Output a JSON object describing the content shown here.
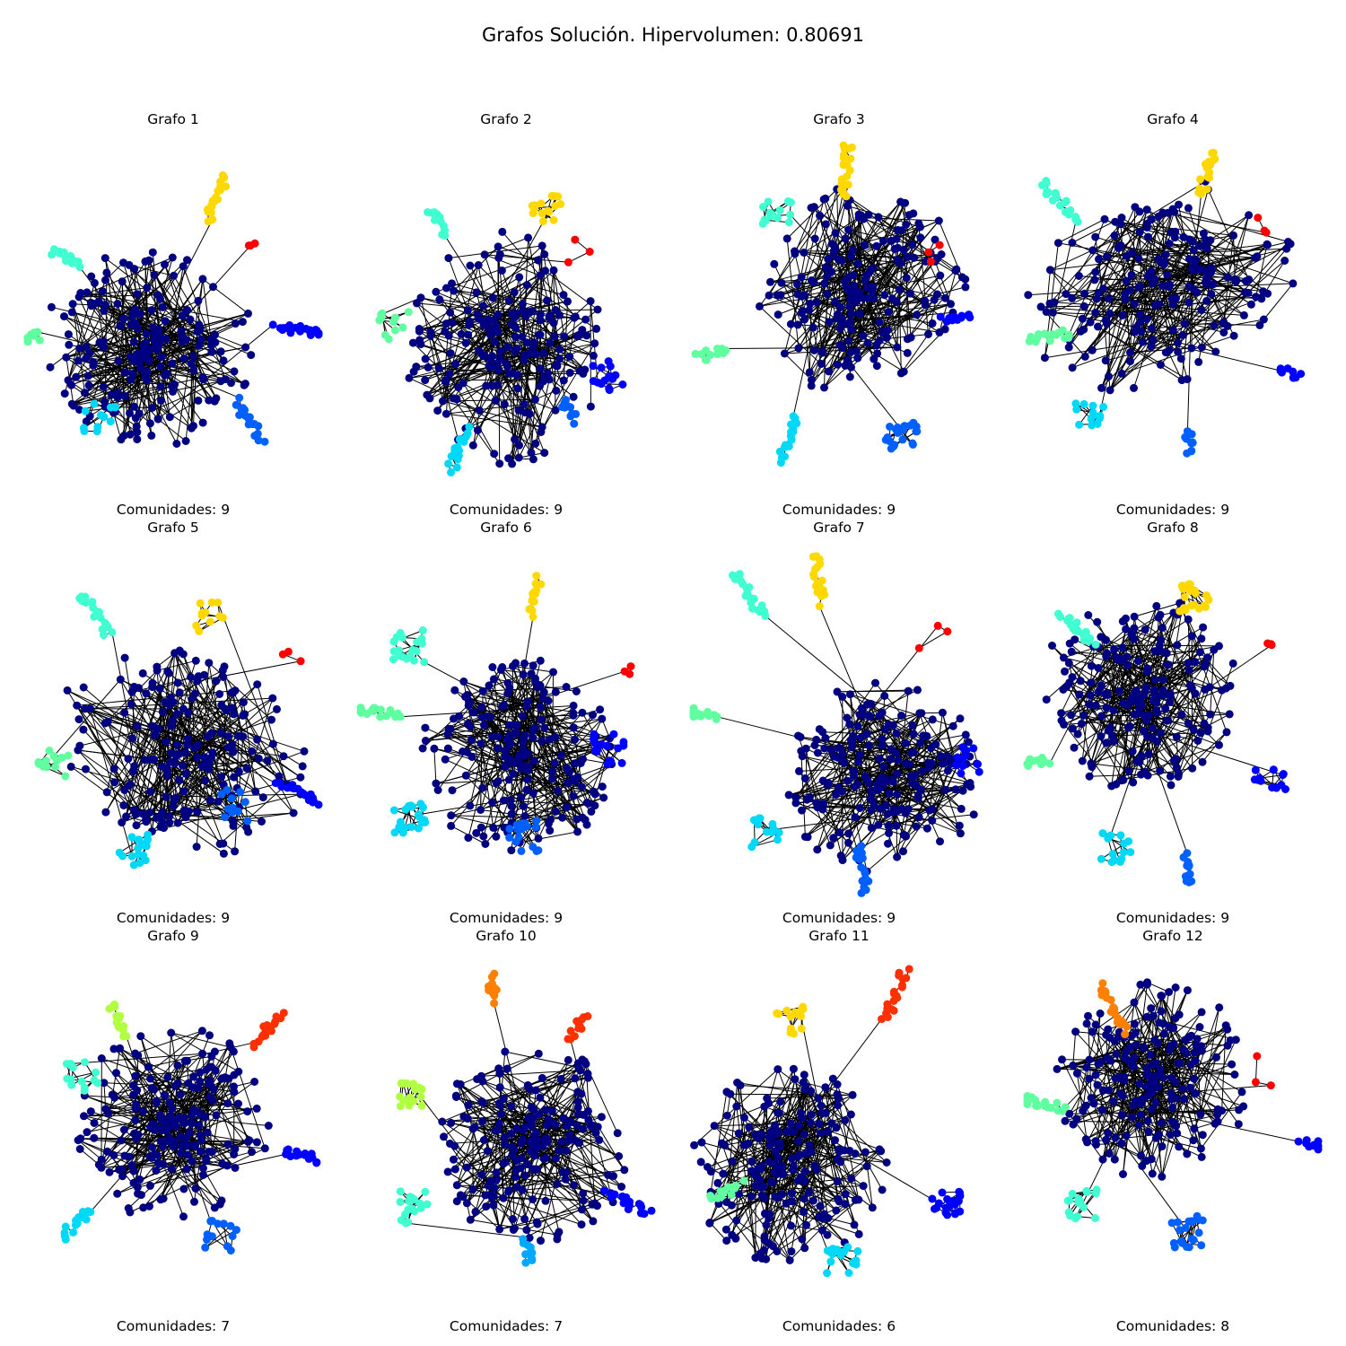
{
  "figure": {
    "title": "Grafos Solución. Hipervolumen: 0.80691"
  },
  "palette": {
    "navy": "#000080",
    "blue": "#0000ff",
    "azure": "#0060ff",
    "sky": "#00a8ff",
    "cyan": "#00d8f8",
    "aqua": "#40ffd0",
    "mint": "#60ffa0",
    "lime": "#b0ff40",
    "yellow": "#ffd800",
    "orange": "#ff8000",
    "redorange": "#ff3000",
    "red": "#ff0000",
    "edge": "#000000"
  },
  "graphs": [
    {
      "title": "Grafo 1",
      "caption": "Comunidades: 9",
      "communities": 9,
      "colors": [
        "navy",
        "blue",
        "azure",
        "cyan",
        "mint",
        "aqua",
        "yellow",
        "red"
      ]
    },
    {
      "title": "Grafo 2",
      "caption": "Comunidades: 9",
      "communities": 9,
      "colors": [
        "navy",
        "blue",
        "azure",
        "cyan",
        "mint",
        "aqua",
        "yellow",
        "red"
      ]
    },
    {
      "title": "Grafo 3",
      "caption": "Comunidades: 9",
      "communities": 9,
      "colors": [
        "navy",
        "blue",
        "azure",
        "cyan",
        "mint",
        "aqua",
        "yellow",
        "red"
      ]
    },
    {
      "title": "Grafo 4",
      "caption": "Comunidades: 9",
      "communities": 9,
      "colors": [
        "navy",
        "blue",
        "azure",
        "cyan",
        "mint",
        "aqua",
        "yellow",
        "red"
      ]
    },
    {
      "title": "Grafo 5",
      "caption": "Comunidades: 9",
      "communities": 9,
      "colors": [
        "navy",
        "blue",
        "azure",
        "cyan",
        "mint",
        "aqua",
        "yellow",
        "red"
      ]
    },
    {
      "title": "Grafo 6",
      "caption": "Comunidades: 9",
      "communities": 9,
      "colors": [
        "navy",
        "blue",
        "azure",
        "cyan",
        "mint",
        "aqua",
        "yellow",
        "red"
      ]
    },
    {
      "title": "Grafo 7",
      "caption": "Comunidades: 9",
      "communities": 9,
      "colors": [
        "navy",
        "blue",
        "azure",
        "cyan",
        "mint",
        "aqua",
        "yellow",
        "red"
      ]
    },
    {
      "title": "Grafo 8",
      "caption": "Comunidades: 9",
      "communities": 9,
      "colors": [
        "navy",
        "blue",
        "azure",
        "cyan",
        "mint",
        "aqua",
        "yellow",
        "red"
      ]
    },
    {
      "title": "Grafo 9",
      "caption": "Comunidades: 7",
      "communities": 7,
      "colors": [
        "navy",
        "blue",
        "azure",
        "cyan",
        "aqua",
        "lime",
        "redorange"
      ]
    },
    {
      "title": "Grafo 10",
      "caption": "Comunidades: 7",
      "communities": 7,
      "colors": [
        "navy",
        "blue",
        "sky",
        "aqua",
        "lime",
        "orange",
        "redorange"
      ]
    },
    {
      "title": "Grafo 11",
      "caption": "Comunidades: 6",
      "communities": 6,
      "colors": [
        "navy",
        "blue",
        "cyan",
        "mint",
        "yellow",
        "redorange"
      ]
    },
    {
      "title": "Grafo 12",
      "caption": "Comunidades: 8",
      "communities": 8,
      "colors": [
        "navy",
        "blue",
        "azure",
        "aqua",
        "mint",
        "orange",
        "red"
      ]
    }
  ]
}
